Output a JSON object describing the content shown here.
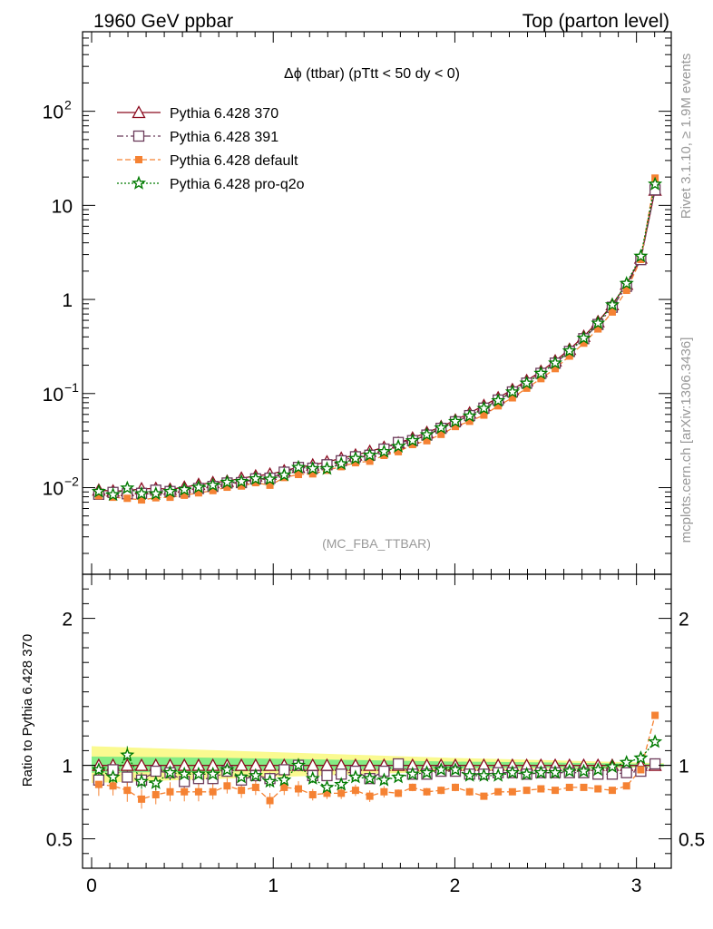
{
  "header": {
    "left": "1960 GeV ppbar",
    "right": "Top (parton level)"
  },
  "side_labels": {
    "rivet": "Rivet 3.1.10, ≥ 1.9M events",
    "mcplots": "mcplots.cern.ch [arXiv:1306.3436]"
  },
  "chart_data": {
    "type": "line",
    "title": "Δϕ (ttbar) (pTtt < 50 dy < 0)",
    "analysis_tag": "(MC_FBA_TTBAR)",
    "main_panel": {
      "ylog": true,
      "ylim": [
        0.0012,
        700
      ],
      "yticks": [
        {
          "v": 0.01,
          "m": "10",
          "e": "−2"
        },
        {
          "v": 0.1,
          "m": "10",
          "e": "−1"
        },
        {
          "v": 1,
          "m": "1",
          "e": ""
        },
        {
          "v": 10,
          "m": "10",
          "e": ""
        },
        {
          "v": 100,
          "m": "10",
          "e": "2"
        }
      ]
    },
    "ratio_panel": {
      "ylabel": "Ratio to Pythia 6.428 370",
      "ylim": [
        0.3,
        2.3
      ],
      "yticks": [
        {
          "v": 0.5,
          "label": "0.5"
        },
        {
          "v": 1,
          "label": "1"
        },
        {
          "v": 2,
          "label": "2"
        }
      ]
    },
    "xlim": [
      -0.05,
      3.1916
    ],
    "xticks": [
      {
        "v": 0,
        "label": "0"
      },
      {
        "v": 1,
        "label": "1"
      },
      {
        "v": 2,
        "label": "2"
      },
      {
        "v": 3,
        "label": "3"
      }
    ],
    "x": [
      0.0393,
      0.1178,
      0.1963,
      0.2749,
      0.3534,
      0.432,
      0.5105,
      0.589,
      0.6676,
      0.7461,
      0.8247,
      0.9032,
      0.9817,
      1.0603,
      1.1388,
      1.2174,
      1.2959,
      1.3744,
      1.453,
      1.5315,
      1.6101,
      1.6886,
      1.7671,
      1.8457,
      1.9242,
      2.0028,
      2.0813,
      2.1598,
      2.2384,
      2.3169,
      2.3955,
      2.474,
      2.5525,
      2.6311,
      2.7096,
      2.7882,
      2.8667,
      2.9452,
      3.0238,
      3.1023
    ],
    "series": [
      {
        "name": "Pythia 6.428 370",
        "color": "#8b0a1e",
        "marker": "triangle-open",
        "dash": "solid",
        "values": [
          0.0094,
          0.0092,
          0.0093,
          0.0097,
          0.0098,
          0.0096,
          0.0101,
          0.0108,
          0.0113,
          0.0117,
          0.0126,
          0.0133,
          0.0139,
          0.0151,
          0.0164,
          0.0174,
          0.0188,
          0.0205,
          0.0222,
          0.0243,
          0.0268,
          0.0298,
          0.0336,
          0.0385,
          0.0445,
          0.0522,
          0.0621,
          0.0745,
          0.0902,
          0.11,
          0.137,
          0.172,
          0.222,
          0.295,
          0.405,
          0.58,
          0.88,
          1.45,
          2.75,
          14.5
        ],
        "ratio": [
          1,
          1,
          1,
          1,
          1,
          1,
          1,
          1,
          1,
          1,
          1,
          1,
          1,
          1,
          1,
          1,
          1,
          1,
          1,
          1,
          1,
          1,
          1,
          1,
          1,
          1,
          1,
          1,
          1,
          1,
          1,
          1,
          1,
          1,
          1,
          1,
          1,
          1,
          1,
          1
        ]
      },
      {
        "name": "Pythia 6.428 391",
        "color": "#6b3b5a",
        "marker": "square-open",
        "dash": "dashdot",
        "values": [
          0.0085,
          0.0089,
          0.0086,
          0.0087,
          0.0094,
          0.0091,
          0.009,
          0.0098,
          0.0103,
          0.0112,
          0.0113,
          0.0124,
          0.0126,
          0.0146,
          0.0164,
          0.0161,
          0.0175,
          0.0193,
          0.0213,
          0.0221,
          0.0257,
          0.0302,
          0.0316,
          0.0362,
          0.0427,
          0.0501,
          0.0583,
          0.07,
          0.0853,
          0.104,
          0.129,
          0.164,
          0.2105,
          0.28,
          0.383,
          0.542,
          0.827,
          1.38,
          2.65,
          14.6
        ],
        "ratio": [
          0.9,
          0.97,
          0.92,
          0.9,
          0.96,
          0.95,
          0.89,
          0.91,
          0.91,
          0.96,
          0.9,
          0.93,
          0.91,
          0.97,
          1.0,
          0.93,
          0.93,
          0.94,
          0.96,
          0.91,
          0.96,
          1.01,
          0.94,
          0.94,
          0.96,
          0.96,
          0.94,
          0.94,
          0.95,
          0.95,
          0.94,
          0.95,
          0.95,
          0.95,
          0.95,
          0.94,
          0.94,
          0.95,
          0.96,
          1.01
        ]
      },
      {
        "name": "Pythia 6.428 default",
        "color": "#f58233",
        "marker": "square-filled",
        "dash": "dashed",
        "values": [
          0.0082,
          0.0079,
          0.0077,
          0.0074,
          0.0078,
          0.0079,
          0.0083,
          0.0088,
          0.0093,
          0.0101,
          0.0104,
          0.0113,
          0.0106,
          0.0128,
          0.0138,
          0.014,
          0.0153,
          0.0167,
          0.0184,
          0.0191,
          0.022,
          0.0241,
          0.0287,
          0.0315,
          0.0368,
          0.0446,
          0.0507,
          0.059,
          0.074,
          0.09,
          0.114,
          0.144,
          0.184,
          0.25,
          0.343,
          0.486,
          0.735,
          1.25,
          2.66,
          19.5
        ],
        "ratio": [
          0.87,
          0.86,
          0.83,
          0.77,
          0.8,
          0.82,
          0.82,
          0.82,
          0.82,
          0.86,
          0.83,
          0.85,
          0.76,
          0.85,
          0.84,
          0.8,
          0.81,
          0.81,
          0.83,
          0.79,
          0.82,
          0.81,
          0.85,
          0.82,
          0.83,
          0.85,
          0.82,
          0.79,
          0.82,
          0.82,
          0.83,
          0.84,
          0.83,
          0.85,
          0.85,
          0.84,
          0.83,
          0.86,
          0.97,
          1.34
        ]
      },
      {
        "name": "Pythia 6.428 pro-q2o",
        "color": "#007a00",
        "marker": "star-open",
        "dash": "dotted",
        "values": [
          0.0091,
          0.0084,
          0.0099,
          0.0086,
          0.0086,
          0.0091,
          0.0095,
          0.0101,
          0.0106,
          0.0114,
          0.0116,
          0.0124,
          0.0123,
          0.0136,
          0.0164,
          0.0159,
          0.0159,
          0.0179,
          0.0204,
          0.0221,
          0.0241,
          0.0274,
          0.0316,
          0.0365,
          0.0432,
          0.0505,
          0.0577,
          0.0695,
          0.0839,
          0.104,
          0.129,
          0.164,
          0.211,
          0.284,
          0.388,
          0.56,
          0.876,
          1.48,
          2.88,
          16.8
        ],
        "ratio": [
          0.97,
          0.92,
          1.07,
          0.89,
          0.88,
          0.95,
          0.94,
          0.94,
          0.94,
          0.97,
          0.92,
          0.93,
          0.89,
          0.9,
          1.0,
          0.91,
          0.85,
          0.87,
          0.92,
          0.91,
          0.9,
          0.92,
          0.94,
          0.95,
          0.97,
          0.97,
          0.93,
          0.93,
          0.93,
          0.95,
          0.94,
          0.95,
          0.95,
          0.96,
          0.96,
          0.97,
          0.99,
          1.02,
          1.05,
          1.16
        ]
      }
    ],
    "ratio_errors": [
      0.06,
      0.05,
      0.06,
      0.05,
      0.05,
      0.05,
      0.05,
      0.05,
      0.04,
      0.04,
      0.04,
      0.04,
      0.04,
      0.04,
      0.04,
      0.03,
      0.03,
      0.03,
      0.03,
      0.03,
      0.03,
      0.02,
      0.02,
      0.02,
      0.02,
      0.02,
      0.02,
      0.015,
      0.015,
      0.015,
      0.01,
      0.01,
      0.01,
      0.01,
      0.01,
      0.01,
      0.008,
      0.008,
      0.006,
      0.004
    ],
    "uncertainty_band": {
      "inner_color": "#84ec84",
      "outer_color": "#fafa90",
      "x": [
        0.0,
        0.5,
        1.0,
        1.5,
        2.0,
        2.5,
        3.0,
        3.15
      ],
      "inner_up": [
        1.06,
        1.055,
        1.045,
        1.035,
        1.025,
        1.02,
        1.012,
        1.01
      ],
      "inner_lo": [
        0.95,
        0.955,
        0.962,
        0.97,
        0.978,
        0.985,
        0.99,
        0.992
      ],
      "outer_up": [
        1.13,
        1.11,
        1.09,
        1.07,
        1.05,
        1.035,
        1.02,
        1.015
      ],
      "outer_lo": [
        0.88,
        0.9,
        0.92,
        0.94,
        0.96,
        0.975,
        0.985,
        0.99
      ]
    }
  }
}
